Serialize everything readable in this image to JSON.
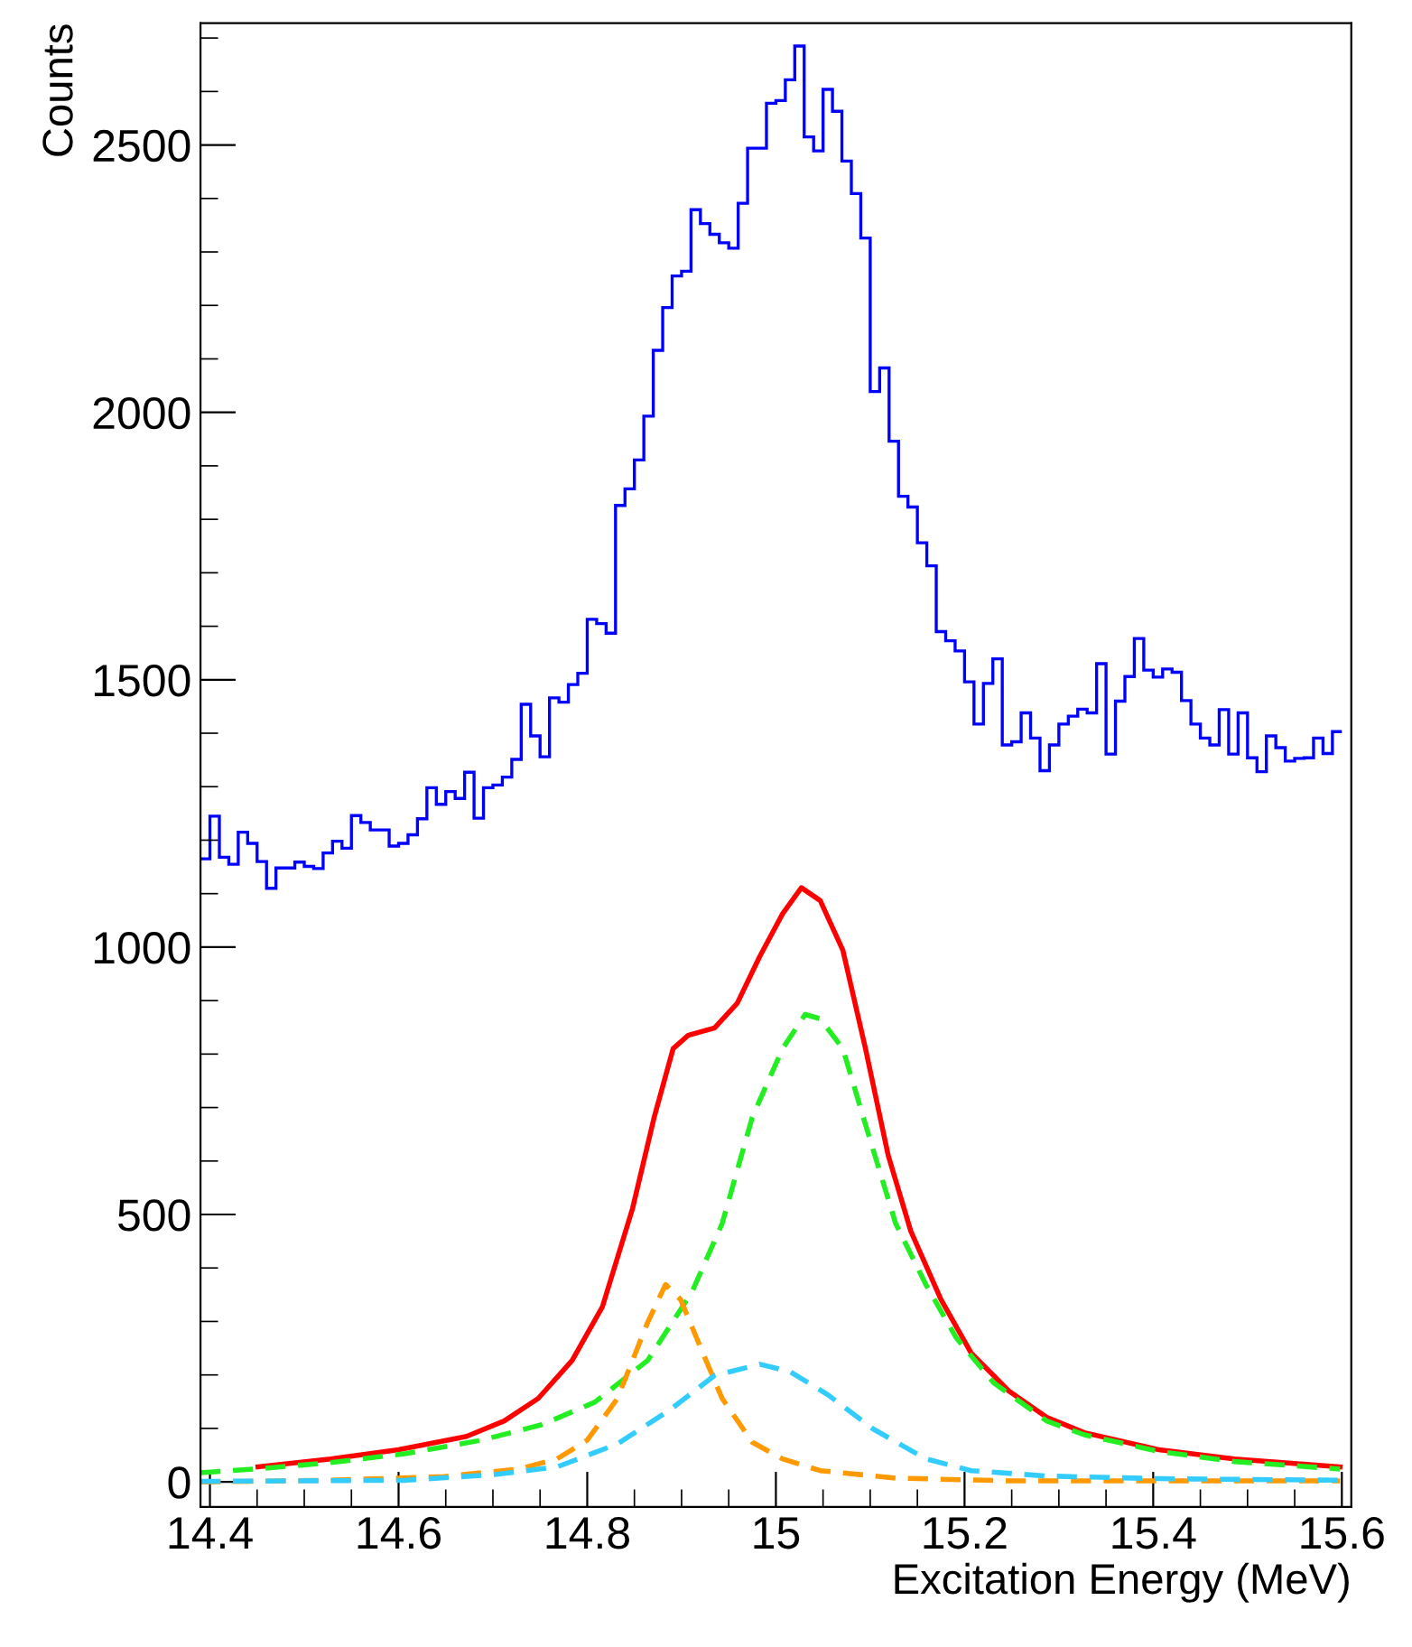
{
  "chart_data": {
    "type": "histogram",
    "xlabel": "Excitation Energy (MeV)",
    "ylabel": "Counts",
    "xlim": [
      14.39,
      15.61
    ],
    "xticks": [
      14.4,
      14.6,
      14.8,
      15,
      15.2,
      15.4,
      15.6
    ],
    "ylim": [
      -47,
      2728
    ],
    "yticks": [
      0,
      500,
      1000,
      1500,
      2000,
      2500
    ],
    "grid": false,
    "series": [
      {
        "color": "#0000ff",
        "bins": [
          14.39,
          14.4,
          14.41,
          14.42,
          14.43,
          14.44,
          14.45,
          14.46,
          14.47,
          14.48,
          14.49,
          14.5,
          14.51,
          14.52,
          14.53,
          14.54,
          14.55,
          14.56,
          14.57,
          14.58,
          14.59,
          14.6,
          14.61,
          14.62,
          14.63,
          14.64,
          14.65,
          14.66,
          14.67,
          14.68,
          14.69,
          14.7,
          14.71,
          14.72,
          14.73,
          14.74,
          14.75,
          14.76,
          14.77,
          14.78,
          14.79,
          14.8,
          14.81,
          14.82,
          14.83,
          14.84,
          14.85,
          14.86,
          14.87,
          14.88,
          14.89,
          14.9,
          14.91,
          14.92,
          14.93,
          14.94,
          14.95,
          14.96,
          14.97,
          14.98,
          14.99,
          15.0,
          15.01,
          15.02,
          15.03,
          15.04,
          15.05,
          15.06,
          15.07,
          15.08,
          15.09,
          15.1,
          15.11,
          15.12,
          15.13,
          15.14,
          15.15,
          15.16,
          15.17,
          15.18,
          15.19,
          15.2,
          15.21,
          15.22,
          15.23,
          15.24,
          15.25,
          15.26,
          15.27,
          15.28,
          15.29,
          15.3,
          15.31,
          15.32,
          15.33,
          15.34,
          15.35,
          15.36,
          15.37,
          15.38,
          15.39,
          15.4,
          15.41,
          15.42,
          15.43,
          15.44,
          15.45,
          15.46,
          15.47,
          15.48,
          15.49,
          15.5,
          15.51,
          15.52,
          15.53,
          15.54,
          15.55,
          15.56,
          15.57,
          15.58,
          15.59,
          15.6
        ],
        "values": [
          1165,
          1245,
          1168,
          1155,
          1215,
          1194,
          1160,
          1110,
          1148,
          1148,
          1159,
          1151,
          1147,
          1176,
          1198,
          1185,
          1246,
          1233,
          1219,
          1219,
          1189,
          1194,
          1210,
          1240,
          1298,
          1267,
          1291,
          1278,
          1327,
          1241,
          1298,
          1303,
          1318,
          1351,
          1454,
          1395,
          1356,
          1466,
          1458,
          1491,
          1512,
          1613,
          1605,
          1587,
          1826,
          1857,
          1911,
          1993,
          2116,
          2196,
          2255,
          2264,
          2379,
          2353,
          2333,
          2317,
          2307,
          2391,
          2494,
          2494,
          2578,
          2583,
          2622,
          2685,
          2515,
          2489,
          2604,
          2563,
          2470,
          2409,
          2326,
          2039,
          2083,
          1946,
          1843,
          1823,
          1756,
          1713,
          1590,
          1573,
          1554,
          1496,
          1417,
          1493,
          1539,
          1378,
          1384,
          1438,
          1391,
          1330,
          1378,
          1417,
          1432,
          1445,
          1438,
          1530,
          1361,
          1460,
          1506,
          1577,
          1518,
          1505,
          1520,
          1514,
          1461,
          1417,
          1391,
          1378,
          1444,
          1361,
          1438,
          1354,
          1328,
          1395,
          1373,
          1348,
          1353,
          1354,
          1391,
          1362,
          1403
        ]
      },
      {
        "type": "line",
        "color": "#ff0000",
        "line_style": "solid",
        "x": [
          14.451,
          14.528,
          14.6,
          14.672,
          14.712,
          14.748,
          14.784,
          14.816,
          14.848,
          14.871,
          14.891,
          14.907,
          14.935,
          14.959,
          14.983,
          15.007,
          15.027,
          15.047,
          15.071,
          15.095,
          15.119,
          15.143,
          15.175,
          15.207,
          15.247,
          15.287,
          15.327,
          15.406,
          15.486,
          15.598
        ],
        "values": [
          28,
          43,
          60,
          85,
          114,
          156,
          227,
          327,
          511,
          682,
          810,
          835,
          849,
          895,
          983,
          1062,
          1111,
          1087,
          994,
          810,
          611,
          469,
          341,
          241,
          170,
          121,
          92,
          60,
          43,
          28
        ]
      },
      {
        "type": "line",
        "color": "#22ee22",
        "line_style": "dashed",
        "x": [
          14.39,
          14.448,
          14.528,
          14.608,
          14.688,
          14.752,
          14.808,
          14.864,
          14.911,
          14.943,
          14.975,
          15.007,
          15.031,
          15.047,
          15.071,
          15.095,
          15.127,
          15.159,
          15.191,
          15.231,
          15.287,
          15.327,
          15.406,
          15.486,
          15.598
        ],
        "values": [
          17,
          24,
          36,
          53,
          78,
          107,
          149,
          227,
          355,
          483,
          682,
          810,
          874,
          866,
          810,
          668,
          483,
          369,
          270,
          185,
          114,
          88,
          57,
          38,
          24
        ]
      },
      {
        "type": "line",
        "color": "#ff9900",
        "line_style": "dashed",
        "x": [
          14.39,
          14.528,
          14.648,
          14.728,
          14.768,
          14.8,
          14.832,
          14.864,
          14.883,
          14.899,
          14.919,
          14.943,
          14.975,
          15.007,
          15.047,
          15.127,
          15.247,
          15.598
        ],
        "values": [
          0,
          3,
          10,
          24,
          43,
          78,
          156,
          298,
          369,
          341,
          256,
          156,
          74,
          43,
          21,
          7,
          2,
          2
        ]
      },
      {
        "type": "line",
        "color": "#33ccff",
        "line_style": "dashed",
        "x": [
          14.39,
          14.608,
          14.704,
          14.768,
          14.832,
          14.888,
          14.935,
          14.983,
          15.015,
          15.055,
          15.103,
          15.159,
          15.207,
          15.287,
          15.406,
          15.598
        ],
        "values": [
          1,
          3,
          14,
          28,
          71,
          135,
          199,
          220,
          206,
          163,
          99,
          43,
          21,
          11,
          6,
          3
        ]
      }
    ]
  }
}
